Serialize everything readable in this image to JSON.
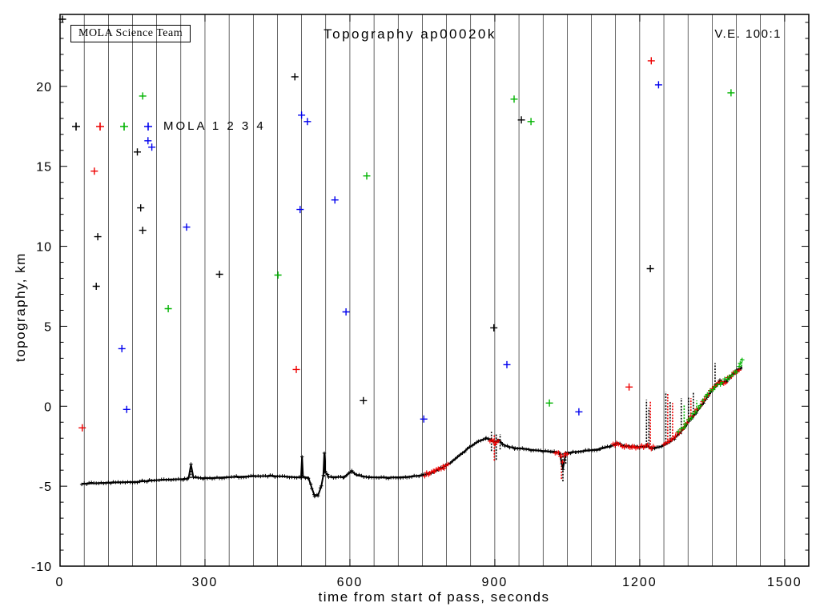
{
  "chart_data": {
    "type": "scatter",
    "title": "Topography ap00020k",
    "annotation_box": "MOLA Science Team",
    "ve_label": "V.E. 100:1",
    "xlabel": "time from start of pass, seconds",
    "ylabel": "topography, km",
    "xlim": [
      0,
      1550
    ],
    "ylim": [
      -10,
      24.5
    ],
    "xticks": [
      0,
      300,
      600,
      900,
      1200,
      1500
    ],
    "yticks": [
      -10,
      -5,
      0,
      5,
      10,
      15,
      20
    ],
    "grid_x_step": 50,
    "grid_style": "vertical lines only",
    "legend": {
      "text": "MOLA 1 2 3 4",
      "position": "upper-left-inside",
      "series_names": [
        "MOLA 1",
        "MOLA 2",
        "MOLA 3",
        "MOLA 4"
      ],
      "marker_colors": [
        "#000000",
        "#ee0000",
        "#00b300",
        "#0000ee"
      ]
    },
    "profile_black": [
      [
        45,
        -4.85
      ],
      [
        80,
        -4.8
      ],
      [
        120,
        -4.76
      ],
      [
        160,
        -4.72
      ],
      [
        200,
        -4.62
      ],
      [
        230,
        -4.58
      ],
      [
        258,
        -4.55
      ],
      [
        266,
        -4.5
      ],
      [
        271,
        -3.65
      ],
      [
        276,
        -4.45
      ],
      [
        300,
        -4.5
      ],
      [
        330,
        -4.46
      ],
      [
        360,
        -4.42
      ],
      [
        400,
        -4.38
      ],
      [
        440,
        -4.36
      ],
      [
        470,
        -4.4
      ],
      [
        490,
        -4.44
      ],
      [
        499,
        -4.42
      ],
      [
        501,
        -3.15
      ],
      [
        503,
        -4.42
      ],
      [
        514,
        -4.46
      ],
      [
        521,
        -5.1
      ],
      [
        527,
        -5.62
      ],
      [
        534,
        -5.58
      ],
      [
        541,
        -5.0
      ],
      [
        545,
        -4.3
      ],
      [
        547,
        -2.95
      ],
      [
        549,
        -4.1
      ],
      [
        556,
        -4.42
      ],
      [
        588,
        -4.42
      ],
      [
        604,
        -4.05
      ],
      [
        614,
        -4.32
      ],
      [
        640,
        -4.44
      ],
      [
        680,
        -4.46
      ],
      [
        718,
        -4.42
      ],
      [
        748,
        -4.32
      ],
      [
        768,
        -4.18
      ],
      [
        788,
        -3.9
      ],
      [
        808,
        -3.55
      ],
      [
        828,
        -3.05
      ],
      [
        848,
        -2.55
      ],
      [
        866,
        -2.2
      ],
      [
        882,
        -2.02
      ],
      [
        892,
        -2.12
      ],
      [
        900,
        -2.25
      ],
      [
        908,
        -2.1
      ],
      [
        916,
        -2.35
      ],
      [
        926,
        -2.52
      ],
      [
        942,
        -2.62
      ],
      [
        960,
        -2.66
      ],
      [
        980,
        -2.74
      ],
      [
        1000,
        -2.8
      ],
      [
        1018,
        -2.86
      ],
      [
        1034,
        -2.9
      ],
      [
        1041,
        -3.9
      ],
      [
        1047,
        -2.92
      ],
      [
        1068,
        -2.86
      ],
      [
        1096,
        -2.76
      ],
      [
        1118,
        -2.68
      ],
      [
        1140,
        -2.5
      ],
      [
        1154,
        -2.34
      ],
      [
        1168,
        -2.46
      ],
      [
        1184,
        -2.52
      ],
      [
        1199,
        -2.56
      ],
      [
        1214,
        -2.5
      ],
      [
        1226,
        -2.62
      ],
      [
        1240,
        -2.56
      ],
      [
        1252,
        -2.42
      ],
      [
        1262,
        -2.22
      ],
      [
        1272,
        -2.0
      ],
      [
        1282,
        -1.7
      ],
      [
        1292,
        -1.38
      ],
      [
        1302,
        -0.92
      ],
      [
        1312,
        -0.58
      ],
      [
        1322,
        -0.2
      ],
      [
        1332,
        0.22
      ],
      [
        1342,
        0.68
      ],
      [
        1352,
        1.08
      ],
      [
        1360,
        1.38
      ],
      [
        1366,
        1.58
      ],
      [
        1372,
        1.48
      ],
      [
        1380,
        1.58
      ],
      [
        1388,
        1.88
      ],
      [
        1396,
        2.1
      ],
      [
        1404,
        2.3
      ],
      [
        1412,
        2.45
      ]
    ],
    "overlay_red_segments": [
      [
        [
          755,
          -4.28
        ],
        [
          765,
          -4.2
        ],
        [
          775,
          -4.1
        ],
        [
          785,
          -3.95
        ],
        [
          795,
          -3.8
        ],
        [
          805,
          -3.55
        ]
      ],
      [
        [
          890,
          -2.15
        ],
        [
          897,
          -2.2
        ],
        [
          903,
          -2.3
        ],
        [
          910,
          -2.25
        ]
      ],
      [
        [
          1025,
          -2.9
        ],
        [
          1032,
          -2.92
        ],
        [
          1040,
          -3.5
        ],
        [
          1046,
          -2.95
        ],
        [
          1053,
          -2.88
        ]
      ],
      [
        [
          1145,
          -2.45
        ],
        [
          1152,
          -2.38
        ],
        [
          1160,
          -2.4
        ],
        [
          1168,
          -2.48
        ],
        [
          1176,
          -2.5
        ],
        [
          1185,
          -2.52
        ],
        [
          1192,
          -2.55
        ],
        [
          1200,
          -2.58
        ],
        [
          1208,
          -2.5
        ],
        [
          1216,
          -2.45
        ],
        [
          1224,
          -2.6
        ],
        [
          1232,
          -2.55
        ]
      ],
      [
        [
          1250,
          -2.42
        ],
        [
          1258,
          -2.3
        ],
        [
          1266,
          -2.1
        ],
        [
          1274,
          -1.9
        ],
        [
          1282,
          -1.65
        ],
        [
          1290,
          -1.35
        ],
        [
          1298,
          -1.0
        ],
        [
          1306,
          -0.7
        ],
        [
          1314,
          -0.35
        ],
        [
          1322,
          -0.1
        ],
        [
          1330,
          0.3
        ],
        [
          1338,
          0.6
        ],
        [
          1346,
          1.0
        ],
        [
          1354,
          1.25
        ],
        [
          1362,
          1.5
        ],
        [
          1370,
          1.45
        ],
        [
          1378,
          1.55
        ],
        [
          1386,
          1.85
        ],
        [
          1394,
          2.05
        ],
        [
          1402,
          2.25
        ],
        [
          1410,
          2.4
        ]
      ]
    ],
    "overlay_green": [
      [
        1280,
        -1.6
      ],
      [
        1295,
        -1.2
      ],
      [
        1310,
        -0.55
      ],
      [
        1325,
        0.0
      ],
      [
        1340,
        0.75
      ],
      [
        1355,
        1.2
      ],
      [
        1370,
        1.5
      ],
      [
        1385,
        1.8
      ],
      [
        1400,
        2.2
      ],
      [
        1408,
        2.6
      ],
      [
        1412,
        2.8
      ],
      [
        1416,
        2.9
      ]
    ],
    "spikes": {
      "black": [
        [
          271,
          -4.5,
          -3.6
        ],
        [
          501,
          -4.4,
          -3.1
        ],
        [
          547,
          -4.4,
          -2.9
        ],
        [
          893,
          -2.8,
          -1.6
        ],
        [
          903,
          -3.35,
          -1.7
        ],
        [
          911,
          -2.7,
          -1.75
        ],
        [
          1041,
          -4.7,
          -2.9
        ],
        [
          1047,
          -3.6,
          -2.85
        ],
        [
          1214,
          -2.6,
          0.4
        ],
        [
          1219,
          -2.55,
          -0.1
        ],
        [
          1254,
          -2.45,
          0.9
        ],
        [
          1263,
          -2.25,
          0.3
        ],
        [
          1286,
          -1.75,
          0.5
        ],
        [
          1301,
          -1.05,
          0.6
        ],
        [
          1311,
          -0.75,
          0.9
        ],
        [
          1356,
          1.15,
          2.7
        ]
      ],
      "red": [
        [
          899,
          -3.4,
          -1.8
        ],
        [
          1038,
          -4.55,
          -2.95
        ],
        [
          1222,
          -2.6,
          0.35
        ],
        [
          1258,
          -2.3,
          0.8
        ],
        [
          1268,
          -2.1,
          0.2
        ],
        [
          1306,
          -0.85,
          0.5
        ]
      ],
      "green": [
        [
          1292,
          -1.35,
          0.1
        ],
        [
          1318,
          -0.25,
          0.35
        ],
        [
          1411,
          2.5,
          3.0
        ]
      ]
    },
    "noise_points": {
      "black": [
        [
          5,
          24.2
        ],
        [
          486,
          20.6
        ],
        [
          160,
          15.9
        ],
        [
          167,
          12.4
        ],
        [
          78,
          10.6
        ],
        [
          171,
          11.0
        ],
        [
          75,
          7.5
        ],
        [
          330,
          8.25
        ],
        [
          955,
          17.9
        ],
        [
          898,
          4.9
        ],
        [
          628,
          0.35
        ],
        [
          1222,
          8.6
        ]
      ],
      "red": [
        [
          71,
          14.7
        ],
        [
          46,
          -1.35
        ],
        [
          489,
          2.3
        ],
        [
          1178,
          1.2
        ],
        [
          1224,
          21.6
        ]
      ],
      "green": [
        [
          171,
          19.4
        ],
        [
          224,
          6.1
        ],
        [
          451,
          8.2
        ],
        [
          635,
          14.4
        ],
        [
          940,
          19.2
        ],
        [
          975,
          17.8
        ],
        [
          1013,
          0.2
        ],
        [
          1389,
          19.6
        ]
      ],
      "blue": [
        [
          262,
          11.2
        ],
        [
          182,
          16.6
        ],
        [
          190,
          16.2
        ],
        [
          497,
          12.3
        ],
        [
          500,
          18.2
        ],
        [
          512,
          17.8
        ],
        [
          569,
          12.9
        ],
        [
          592,
          5.9
        ],
        [
          128,
          3.6
        ],
        [
          138,
          -0.2
        ],
        [
          753,
          -0.8
        ],
        [
          925,
          2.6
        ],
        [
          1074,
          -0.35
        ],
        [
          1239,
          20.1
        ]
      ]
    }
  }
}
